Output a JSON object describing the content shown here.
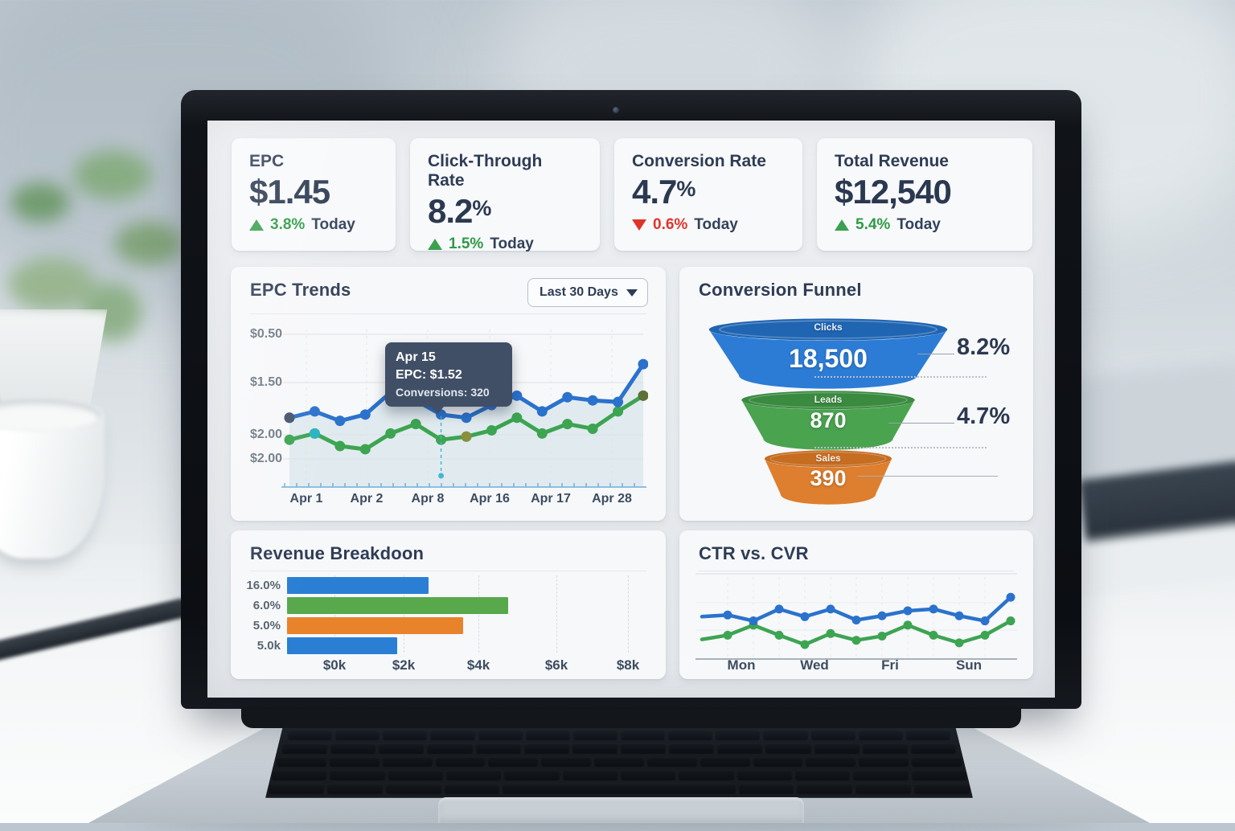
{
  "kpi_cards": [
    {
      "title": "EPC",
      "value": "$1.45",
      "unit": "",
      "delta_pct": "3.8%",
      "delta_label": "Today",
      "direction": "up"
    },
    {
      "title": "Click-Through Rate",
      "value": "8.2",
      "unit": "%",
      "delta_pct": "1.5%",
      "delta_label": "Today",
      "direction": "up"
    },
    {
      "title": "Conversion Rate",
      "value": "4.7",
      "unit": "%",
      "delta_pct": "0.6%",
      "delta_label": "Today",
      "direction": "down"
    },
    {
      "title": "Total Revenue",
      "value": "$12,540",
      "unit": "",
      "delta_pct": "5.4%",
      "delta_label": "Today",
      "direction": "up"
    }
  ],
  "panels": {
    "epc_trends": {
      "title": "EPC Trends",
      "range_selector": {
        "value": "Last 30 Days"
      }
    },
    "funnel": {
      "title": "Conversion Funnel"
    },
    "revenue": {
      "title": "Revenue Breakdoon"
    },
    "ctr_cvr": {
      "title": "CTR vs. CVR"
    }
  },
  "chart_data": [
    {
      "id": "epc_trends",
      "type": "line",
      "title": "EPC Trends",
      "range": "Last 30 Days",
      "y_ticks": [
        "$0.50",
        "$1.50",
        "$2.00",
        "$2.00"
      ],
      "x_ticks": [
        "Apr 1",
        "Apr 2",
        "Apr 8",
        "Apr 16",
        "Apr 17",
        "Apr 28"
      ],
      "series": [
        {
          "name": "EPC",
          "color": "#2a72cc",
          "values": [
            44,
            48,
            42,
            46,
            60,
            55,
            46,
            44,
            52,
            58,
            48,
            57,
            55,
            54,
            78
          ]
        },
        {
          "name": "Conversions",
          "color": "#3da452",
          "values": [
            30,
            34,
            26,
            24,
            34,
            40,
            30,
            32,
            36,
            44,
            34,
            40,
            37,
            48,
            58
          ]
        }
      ],
      "area_color": "#d3e4e8",
      "marker_accents": [
        {
          "series": 0,
          "index": 0,
          "color": "#44546a"
        },
        {
          "series": 1,
          "index": 1,
          "color": "#2ab3c0"
        },
        {
          "series": 1,
          "index": 7,
          "color": "#8a8f3e"
        },
        {
          "series": 1,
          "index": 14,
          "color": "#5f6f37"
        }
      ],
      "tooltip": {
        "date": "Apr 15",
        "epc": "EPC: $1.52",
        "conversions": "Conversions: 320"
      },
      "grid": true,
      "legend": false
    },
    {
      "id": "conversion_funnel",
      "type": "funnel",
      "title": "Conversion Funnel",
      "stages": [
        {
          "label": "Clicks",
          "value": 18500,
          "display": "18,500",
          "color": "#2c7cd6",
          "rim": "#2065b2",
          "rate": "8.2%"
        },
        {
          "label": "Leads",
          "value": 870,
          "display": "870",
          "color": "#4aa34f",
          "rim": "#3a8a40",
          "rate": "4.7%"
        },
        {
          "label": "Sales",
          "value": 390,
          "display": "390",
          "color": "#dd7f2e",
          "rim": "#c66d22",
          "rate": ""
        }
      ]
    },
    {
      "id": "revenue_breakdown",
      "type": "bar",
      "title": "Revenue Breakdoon",
      "orientation": "horizontal",
      "categories": [
        "16.0%",
        "6.0%",
        "5.0%",
        "5.0k"
      ],
      "values_k": [
        2.7,
        5.0,
        3.7,
        1.8
      ],
      "colors": [
        "#2a7fd4",
        "#58a84c",
        "#e8832c",
        "#2a7fd4"
      ],
      "x_ticks": [
        "$0k",
        "$2k",
        "$4k",
        "$6k",
        "$8k"
      ],
      "xlim_k": [
        0,
        8
      ],
      "grid": true
    },
    {
      "id": "ctr_vs_cvr",
      "type": "line",
      "title": "CTR vs. CVR",
      "x_ticks": [
        "Mon",
        "Wed",
        "Fri",
        "Sun"
      ],
      "series": [
        {
          "name": "CTR",
          "color": "#2a72cc",
          "values": [
            54,
            56,
            49,
            63,
            54,
            63,
            50,
            55,
            61,
            63,
            55,
            49,
            77
          ]
        },
        {
          "name": "CVR",
          "color": "#3da452",
          "values": [
            27,
            32,
            44,
            32,
            21,
            34,
            26,
            31,
            44,
            32,
            23,
            32,
            49
          ]
        }
      ],
      "grid": true,
      "legend": false
    }
  ]
}
